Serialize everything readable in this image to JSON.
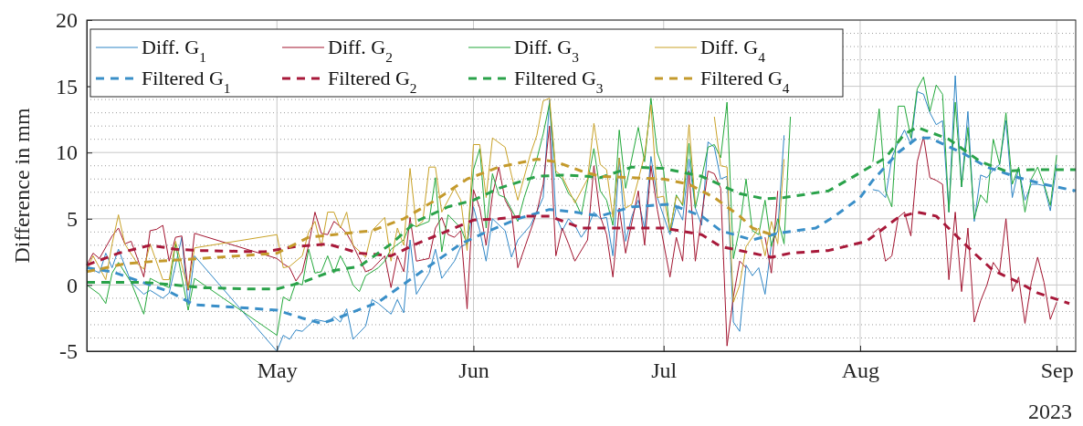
{
  "chart_data": {
    "type": "line",
    "ylabel": "Difference in mm",
    "xlim": [
      "2023-04-01",
      "2023-09-04"
    ],
    "ylim": [
      -5,
      20
    ],
    "xticks": [
      {
        "value": "2023-05-01",
        "label": "May"
      },
      {
        "value": "2023-06-01",
        "label": "Jun"
      },
      {
        "value": "2023-07-01",
        "label": "Jul"
      },
      {
        "value": "2023-08-01",
        "label": "Aug"
      },
      {
        "value": "2023-09-01",
        "label": "Sep"
      }
    ],
    "yticks": [
      -5,
      0,
      5,
      10,
      15,
      20
    ],
    "grid": true,
    "legend": "top",
    "annotations": [
      "2023"
    ],
    "series": [
      {
        "name": "Diff. G$_{1}$",
        "color": "#2f86c6",
        "line_style": "solid",
        "x": [
          "2023-04-01",
          "2023-04-03",
          "2023-04-04",
          "2023-04-05",
          "2023-04-06",
          "2023-04-08",
          "2023-04-10",
          "2023-04-11",
          "2023-04-13",
          "2023-04-14",
          "2023-04-16",
          "2023-04-17",
          "2023-04-18",
          "2023-05-01",
          "2023-05-02",
          "2023-05-03",
          "2023-05-04",
          "2023-05-05",
          "2023-05-07",
          "2023-05-09",
          "2023-05-10",
          "2023-05-11",
          "2023-05-12",
          "2023-05-13",
          "2023-05-15",
          "2023-05-16",
          "2023-05-17",
          "2023-05-19",
          "2023-05-20",
          "2023-05-21",
          "2023-05-22",
          "2023-05-23",
          "2023-05-25",
          "2023-05-26",
          "2023-05-27",
          "2023-05-29",
          "2023-05-30",
          "2023-05-31",
          "2023-06-01",
          "2023-06-02",
          "2023-06-03",
          "2023-06-04",
          "2023-06-06",
          "2023-06-07",
          "2023-06-08",
          "2023-06-10",
          "2023-06-12",
          "2023-06-13",
          "2023-06-14",
          "2023-06-15",
          "2023-06-16",
          "2023-06-17",
          "2023-06-18",
          "2023-06-19",
          "2023-06-20",
          "2023-06-21",
          "2023-06-22",
          "2023-06-23",
          "2023-06-24",
          "2023-06-25",
          "2023-06-26",
          "2023-06-27",
          "2023-06-28",
          "2023-06-29",
          "2023-06-30",
          "2023-07-02",
          "2023-07-03",
          "2023-07-04",
          "2023-07-05",
          "2023-07-06",
          "2023-07-07",
          "2023-07-08",
          "2023-07-09",
          "2023-07-10",
          "2023-07-11",
          "2023-07-12",
          "2023-07-13",
          "2023-07-14",
          "2023-07-15",
          "2023-07-16",
          "2023-07-17",
          "2023-07-18",
          "2023-07-19",
          "2023-07-20",
          "2023-07-21",
          "2023-08-03",
          "2023-08-04",
          "2023-08-05",
          "2023-08-06",
          "2023-08-07",
          "2023-08-08",
          "2023-08-09",
          "2023-08-10",
          "2023-08-11",
          "2023-08-12",
          "2023-08-13",
          "2023-08-14",
          "2023-08-15",
          "2023-08-16",
          "2023-08-17",
          "2023-08-18",
          "2023-08-19",
          "2023-08-20",
          "2023-08-21",
          "2023-08-22",
          "2023-08-23",
          "2023-08-24",
          "2023-08-25",
          "2023-08-26",
          "2023-08-27",
          "2023-08-28",
          "2023-08-29",
          "2023-08-30",
          "2023-08-31",
          "2023-09-01"
        ],
        "values": [
          1.4,
          0.9,
          2.4,
          1.3,
          2.7,
          0.2,
          -0.7,
          -0.4,
          -1.0,
          -0.6,
          3.6,
          -1.5,
          2.2,
          -5.0,
          -3.8,
          -4.1,
          -3.4,
          -3.5,
          -2.6,
          -2.8,
          -2.4,
          -2.8,
          -1.8,
          -4.1,
          -3.1,
          -1.1,
          -1.4,
          -2.2,
          -1.1,
          -2.1,
          3.4,
          -0.7,
          0.9,
          2.7,
          0.5,
          1.8,
          2.9,
          3.1,
          5.9,
          4.1,
          1.8,
          5.0,
          4.1,
          2.1,
          3.4,
          4.5,
          6.6,
          14.0,
          5.2,
          4.1,
          5.0,
          4.5,
          3.6,
          4.3,
          5.5,
          5.0,
          5.1,
          2.2,
          9.6,
          3.3,
          5.2,
          6.4,
          4.3,
          9.7,
          6.6,
          3.8,
          5.9,
          4.9,
          9.5,
          5.8,
          4.5,
          10.8,
          10.4,
          8.0,
          8.2,
          -2.8,
          -3.5,
          1.5,
          0.7,
          1.3,
          -0.7,
          3.1,
          4.1,
          11.3,
          null,
          7.2,
          7.1,
          6.6,
          9.6,
          10.8,
          11.7,
          10.6,
          14.6,
          14.4,
          13.0,
          12.1,
          12.4,
          5.5,
          15.8,
          7.4,
          13.1,
          4.8,
          8.3,
          8.1,
          8.7,
          9.1,
          12.4,
          6.6,
          8.8,
          6.4,
          7.6,
          7.6,
          7.5,
          5.6,
          9.1
        ]
      },
      {
        "name": "Diff. G$_{2}$",
        "color": "#a2142f",
        "line_style": "solid",
        "x": [
          "2023-04-01",
          "2023-04-02",
          "2023-04-03",
          "2023-04-05",
          "2023-04-06",
          "2023-04-07",
          "2023-04-08",
          "2023-04-09",
          "2023-04-10",
          "2023-04-11",
          "2023-04-12",
          "2023-04-13",
          "2023-04-14",
          "2023-04-15",
          "2023-04-16",
          "2023-04-17",
          "2023-04-18",
          "2023-05-01",
          "2023-05-02",
          "2023-05-03",
          "2023-05-04",
          "2023-05-05",
          "2023-05-06",
          "2023-05-07",
          "2023-05-08",
          "2023-05-09",
          "2023-05-10",
          "2023-05-11",
          "2023-05-12",
          "2023-05-13",
          "2023-05-15",
          "2023-05-16",
          "2023-05-18",
          "2023-05-19",
          "2023-05-20",
          "2023-05-21",
          "2023-05-22",
          "2023-05-23",
          "2023-05-25",
          "2023-05-26",
          "2023-05-27",
          "2023-05-28",
          "2023-05-29",
          "2023-05-30",
          "2023-05-31",
          "2023-06-01",
          "2023-06-02",
          "2023-06-03",
          "2023-06-04",
          "2023-06-05",
          "2023-06-06",
          "2023-06-07",
          "2023-06-08",
          "2023-06-09",
          "2023-06-11",
          "2023-06-12",
          "2023-06-13",
          "2023-06-14",
          "2023-06-15",
          "2023-06-16",
          "2023-06-17",
          "2023-06-19",
          "2023-06-20",
          "2023-06-21",
          "2023-06-22",
          "2023-06-23",
          "2023-06-24",
          "2023-06-25",
          "2023-06-27",
          "2023-06-28",
          "2023-06-29",
          "2023-06-30",
          "2023-07-02",
          "2023-07-03",
          "2023-07-04",
          "2023-07-05",
          "2023-07-06",
          "2023-07-08",
          "2023-07-09",
          "2023-07-10",
          "2023-07-11",
          "2023-07-12",
          "2023-07-13",
          "2023-07-14",
          "2023-07-15",
          "2023-07-17",
          "2023-07-18",
          "2023-07-19",
          "2023-07-20",
          "2023-08-03",
          "2023-08-04",
          "2023-08-05",
          "2023-08-06",
          "2023-08-07",
          "2023-08-08",
          "2023-08-09",
          "2023-08-10",
          "2023-08-11",
          "2023-08-12",
          "2023-08-13",
          "2023-08-14",
          "2023-08-15",
          "2023-08-16",
          "2023-08-17",
          "2023-08-18",
          "2023-08-19",
          "2023-08-20",
          "2023-08-21",
          "2023-08-22",
          "2023-08-23",
          "2023-08-24",
          "2023-08-25",
          "2023-08-26",
          "2023-08-27",
          "2023-08-28",
          "2023-08-29",
          "2023-08-30",
          "2023-08-31",
          "2023-09-01"
        ],
        "values": [
          1.5,
          2.4,
          2.0,
          3.7,
          4.3,
          3.1,
          3.3,
          2.0,
          0.6,
          4.1,
          4.2,
          4.5,
          1.8,
          3.6,
          3.7,
          -0.4,
          3.9,
          2.0,
          1.6,
          1.3,
          0.3,
          1.0,
          3.0,
          5.5,
          3.9,
          3.8,
          4.8,
          4.4,
          3.9,
          3.0,
          1.0,
          1.2,
          2.2,
          -0.2,
          2.2,
          1.0,
          5.1,
          1.8,
          2.0,
          4.3,
          5.1,
          3.8,
          3.6,
          4.1,
          -1.8,
          7.2,
          5.8,
          3.0,
          6.8,
          8.9,
          6.4,
          5.5,
          1.3,
          2.7,
          5.5,
          7.6,
          12.0,
          2.2,
          4.3,
          3.1,
          1.8,
          3.4,
          9.0,
          5.2,
          3.8,
          0.6,
          5.8,
          2.4,
          7.1,
          3.0,
          9.0,
          5.7,
          0.6,
          3.6,
          1.8,
          8.6,
          1.8,
          8.6,
          8.4,
          7.3,
          -4.6,
          -0.9,
          1.8,
          1.3,
          null,
          3.6,
          0.9,
          7.1,
          null,
          3.9,
          4.3,
          1.8,
          2.2,
          5.1,
          5.5,
          3.7,
          9.3,
          11.2,
          8.1,
          7.9,
          7.6,
          0.4,
          5.5,
          -0.5,
          4.3,
          -2.8,
          -1.2,
          0,
          1.7,
          1.0,
          5.0,
          -0.5,
          0.6,
          -2.9,
          0.2,
          2.1,
          0.2,
          -2.6,
          -1.3
        ]
      },
      {
        "name": "Diff. G$_{3}$",
        "color": "#22a83a",
        "line_style": "solid",
        "x": [
          "2023-04-01",
          "2023-04-03",
          "2023-04-04",
          "2023-04-05",
          "2023-04-06",
          "2023-04-08",
          "2023-04-10",
          "2023-04-11",
          "2023-04-13",
          "2023-04-14",
          "2023-04-15",
          "2023-04-17",
          "2023-04-18",
          "2023-05-01",
          "2023-05-02",
          "2023-05-03",
          "2023-05-04",
          "2023-05-05",
          "2023-05-06",
          "2023-05-07",
          "2023-05-08",
          "2023-05-09",
          "2023-05-10",
          "2023-05-11",
          "2023-05-12",
          "2023-05-13",
          "2023-05-14",
          "2023-05-15",
          "2023-05-17",
          "2023-05-18",
          "2023-05-19",
          "2023-05-21",
          "2023-05-22",
          "2023-05-23",
          "2023-05-25",
          "2023-05-26",
          "2023-05-27",
          "2023-05-28",
          "2023-05-30",
          "2023-05-31",
          "2023-06-01",
          "2023-06-02",
          "2023-06-03",
          "2023-06-04",
          "2023-06-05",
          "2023-06-06",
          "2023-06-08",
          "2023-06-09",
          "2023-06-11",
          "2023-06-12",
          "2023-06-13",
          "2023-06-14",
          "2023-06-15",
          "2023-06-16",
          "2023-06-17",
          "2023-06-18",
          "2023-06-20",
          "2023-06-21",
          "2023-06-22",
          "2023-06-23",
          "2023-06-24",
          "2023-06-25",
          "2023-06-27",
          "2023-06-28",
          "2023-06-29",
          "2023-06-30",
          "2023-07-01",
          "2023-07-02",
          "2023-07-03",
          "2023-07-04",
          "2023-07-05",
          "2023-07-06",
          "2023-07-08",
          "2023-07-09",
          "2023-07-10",
          "2023-07-11",
          "2023-07-12",
          "2023-07-13",
          "2023-07-14",
          "2023-07-15",
          "2023-07-16",
          "2023-07-17",
          "2023-07-18",
          "2023-07-19",
          "2023-07-20",
          "2023-07-21",
          "2023-07-22",
          "2023-08-03",
          "2023-08-04",
          "2023-08-05",
          "2023-08-06",
          "2023-08-07",
          "2023-08-08",
          "2023-08-09",
          "2023-08-10",
          "2023-08-11",
          "2023-08-12",
          "2023-08-13",
          "2023-08-14",
          "2023-08-15",
          "2023-08-16",
          "2023-08-17",
          "2023-08-18",
          "2023-08-19",
          "2023-08-20",
          "2023-08-21",
          "2023-08-22",
          "2023-08-23",
          "2023-08-24",
          "2023-08-25",
          "2023-08-26",
          "2023-08-27",
          "2023-08-28",
          "2023-08-29",
          "2023-08-30",
          "2023-08-31",
          "2023-09-01"
        ],
        "values": [
          0,
          -0.7,
          -1.4,
          0.9,
          1.7,
          0.2,
          -2.2,
          0.5,
          0,
          -0.2,
          3.1,
          -1.9,
          0.5,
          -3.8,
          -0.9,
          -1.2,
          0.2,
          0,
          2.7,
          0.9,
          1.0,
          2.2,
          0.9,
          2.2,
          1.3,
          0,
          -0.5,
          0.7,
          1.3,
          1.8,
          2.7,
          3.4,
          4.6,
          4.4,
          4.8,
          8.1,
          2.5,
          5.3,
          4.3,
          3.1,
          8.7,
          10.3,
          4.3,
          8.4,
          6.8,
          6.6,
          4.8,
          6.6,
          9.5,
          11.4,
          13.7,
          8.4,
          8.0,
          6.9,
          6.4,
          5.3,
          10.3,
          7.1,
          6.4,
          4.5,
          11.7,
          7.3,
          11.9,
          9.3,
          14.1,
          10.0,
          8.6,
          4.0,
          6.8,
          6.0,
          10.7,
          5.8,
          10.4,
          10.6,
          9.6,
          13.8,
          2.0,
          4.3,
          8.0,
          4.1,
          3.8,
          6.4,
          2.9,
          5.0,
          3.1,
          12.7,
          null,
          9.3,
          13.3,
          7.1,
          5.9,
          13.5,
          13.5,
          11.1,
          14.8,
          15.7,
          13.1,
          15.1,
          14.4,
          5.5,
          13.8,
          7.4,
          11.9,
          5.0,
          6.8,
          6.2,
          11.0,
          9.1,
          13.0,
          7.6,
          8.9,
          5.5,
          8.0,
          8.9,
          7.6,
          6.0,
          9.8
        ]
      },
      {
        "name": "Diff. G$_{4}$",
        "color": "#c9a227",
        "line_style": "solid",
        "x": [
          "2023-04-01",
          "2023-04-02",
          "2023-04-04",
          "2023-04-05",
          "2023-04-06",
          "2023-04-07",
          "2023-04-09",
          "2023-04-10",
          "2023-04-11",
          "2023-04-13",
          "2023-04-14",
          "2023-04-15",
          "2023-04-17",
          "2023-04-18",
          "2023-05-01",
          "2023-05-02",
          "2023-05-03",
          "2023-05-05",
          "2023-05-06",
          "2023-05-07",
          "2023-05-08",
          "2023-05-09",
          "2023-05-10",
          "2023-05-11",
          "2023-05-12",
          "2023-05-13",
          "2023-05-15",
          "2023-05-16",
          "2023-05-18",
          "2023-05-19",
          "2023-05-20",
          "2023-05-21",
          "2023-05-22",
          "2023-05-23",
          "2023-05-24",
          "2023-05-25",
          "2023-05-26",
          "2023-05-27",
          "2023-05-29",
          "2023-05-30",
          "2023-05-31",
          "2023-06-01",
          "2023-06-02",
          "2023-06-03",
          "2023-06-04",
          "2023-06-06",
          "2023-06-07",
          "2023-06-08",
          "2023-06-10",
          "2023-06-11",
          "2023-06-12",
          "2023-06-13",
          "2023-06-14",
          "2023-06-15",
          "2023-06-17",
          "2023-06-19",
          "2023-06-20",
          "2023-06-21",
          "2023-06-22",
          "2023-06-23",
          "2023-06-24",
          "2023-06-25",
          "2023-06-26",
          "2023-06-28",
          "2023-06-29",
          "2023-06-30",
          "2023-07-01",
          "2023-07-02",
          "2023-07-03",
          "2023-07-04",
          "2023-07-05",
          "2023-07-06",
          "2023-07-07",
          "2023-07-09",
          "2023-07-10",
          "2023-07-11",
          "2023-07-12",
          "2023-07-13",
          "2023-07-14",
          "2023-07-15",
          "2023-07-16",
          "2023-07-17",
          "2023-07-18",
          "2023-07-19",
          "2023-07-20"
        ],
        "values": [
          1.1,
          2.2,
          0.4,
          3.1,
          5.3,
          3.1,
          1.6,
          1.2,
          3.1,
          0.4,
          0.4,
          3.3,
          -0.3,
          2.8,
          3.8,
          1.3,
          1.4,
          2.2,
          4.0,
          4.8,
          2.9,
          5.5,
          5.5,
          4.3,
          5.5,
          3.0,
          2.1,
          4.1,
          5.1,
          1.8,
          4.3,
          3.0,
          8.8,
          4.4,
          4.8,
          8.9,
          8.9,
          5.5,
          7.3,
          6.4,
          2.6,
          10.6,
          10.6,
          6.6,
          11.1,
          10.4,
          8.3,
          6.4,
          9.9,
          11.3,
          13.9,
          14.1,
          8.6,
          8.2,
          6.2,
          8.0,
          12.2,
          9.1,
          8.7,
          5.1,
          9.6,
          5.8,
          6.1,
          9.8,
          13.6,
          6.6,
          6.7,
          4.1,
          6.7,
          6.1,
          12.1,
          6.1,
          null,
          12.7,
          9.0,
          8.9,
          -1.3,
          0,
          2.9,
          3.6,
          4.3,
          2.2,
          4.8,
          3.1,
          9.5
        ]
      },
      {
        "name": "Filtered G$_{1}$",
        "color": "#3a8fc8",
        "line_style": "dashed",
        "x": [
          "2023-04-01",
          "2023-04-05",
          "2023-04-08",
          "2023-04-14",
          "2023-04-18",
          "2023-04-25",
          "2023-05-01",
          "2023-05-05",
          "2023-05-08",
          "2023-05-10",
          "2023-05-17",
          "2023-05-22",
          "2023-05-30",
          "2023-06-03",
          "2023-06-08",
          "2023-06-13",
          "2023-06-17",
          "2023-06-21",
          "2023-06-26",
          "2023-07-02",
          "2023-07-07",
          "2023-07-10",
          "2023-07-15",
          "2023-07-19",
          "2023-07-25",
          "2023-07-28",
          "2023-08-01",
          "2023-08-03",
          "2023-08-07",
          "2023-08-10",
          "2023-08-12",
          "2023-08-17",
          "2023-08-21",
          "2023-08-26",
          "2023-08-30",
          "2023-09-04"
        ],
        "values": [
          1.3,
          1.0,
          0.5,
          -0.5,
          -1.5,
          -1.7,
          -1.9,
          -2.5,
          -2.9,
          -2.6,
          -1.3,
          0.4,
          3.1,
          4.0,
          5.0,
          5.7,
          5.5,
          5.2,
          5.9,
          6.1,
          5.2,
          4.1,
          3.4,
          3.9,
          4.3,
          5.2,
          6.6,
          7.9,
          10.0,
          11.1,
          11.1,
          10.0,
          8.9,
          8.1,
          7.6,
          7.1
        ]
      },
      {
        "name": "Filtered G$_{2}$",
        "color": "#a8193a",
        "line_style": "dashed",
        "x": [
          "2023-04-01",
          "2023-04-06",
          "2023-04-11",
          "2023-04-15",
          "2023-04-19",
          "2023-04-29",
          "2023-05-04",
          "2023-05-09",
          "2023-05-14",
          "2023-05-19",
          "2023-05-23",
          "2023-05-28",
          "2023-06-01",
          "2023-06-05",
          "2023-06-09",
          "2023-06-13",
          "2023-06-18",
          "2023-06-21",
          "2023-06-26",
          "2023-07-01",
          "2023-07-07",
          "2023-07-10",
          "2023-07-15",
          "2023-07-18",
          "2023-07-21",
          "2023-07-27",
          "2023-08-02",
          "2023-08-07",
          "2023-08-10",
          "2023-08-13",
          "2023-08-16",
          "2023-08-19",
          "2023-08-22",
          "2023-08-26",
          "2023-08-29",
          "2023-09-03"
        ],
        "values": [
          1.5,
          2.4,
          3.0,
          2.7,
          2.6,
          2.5,
          2.9,
          3.1,
          2.4,
          2.2,
          3.1,
          4.1,
          4.9,
          5.0,
          5.2,
          5.2,
          4.3,
          4.3,
          4.3,
          4.3,
          3.8,
          2.9,
          2.4,
          2.1,
          2.4,
          2.6,
          3.3,
          5.1,
          5.5,
          5.2,
          3.8,
          2.4,
          1.1,
          0.2,
          -0.6,
          -1.4
        ]
      },
      {
        "name": "Filtered G$_{3}$",
        "color": "#2aa24a",
        "line_style": "dashed",
        "x": [
          "2023-04-01",
          "2023-04-10",
          "2023-04-15",
          "2023-04-19",
          "2023-04-27",
          "2023-05-01",
          "2023-05-05",
          "2023-05-10",
          "2023-05-14",
          "2023-05-19",
          "2023-05-23",
          "2023-05-28",
          "2023-06-01",
          "2023-06-05",
          "2023-06-11",
          "2023-06-15",
          "2023-06-19",
          "2023-06-21",
          "2023-06-26",
          "2023-07-01",
          "2023-07-07",
          "2023-07-13",
          "2023-07-17",
          "2023-07-20",
          "2023-07-27",
          "2023-07-31",
          "2023-08-05",
          "2023-08-08",
          "2023-08-10",
          "2023-08-15",
          "2023-08-20",
          "2023-08-24",
          "2023-08-28",
          "2023-09-04"
        ],
        "values": [
          0.2,
          0.2,
          0.0,
          -0.2,
          -0.3,
          -0.3,
          0.2,
          1.1,
          1.4,
          3.1,
          4.8,
          5.9,
          6.4,
          7.3,
          8.2,
          8.3,
          8.2,
          8.1,
          8.9,
          8.8,
          8.2,
          6.9,
          6.5,
          6.6,
          7.1,
          8.2,
          9.6,
          11.4,
          11.9,
          11.0,
          9.3,
          8.6,
          8.7,
          8.7
        ]
      },
      {
        "name": "Filtered G$_{4}$",
        "color": "#c49a2c",
        "line_style": "dashed",
        "x": [
          "2023-04-01",
          "2023-04-07",
          "2023-04-12",
          "2023-04-16",
          "2023-04-22",
          "2023-05-01",
          "2023-05-06",
          "2023-05-10",
          "2023-05-16",
          "2023-05-21",
          "2023-05-26",
          "2023-05-31",
          "2023-06-05",
          "2023-06-11",
          "2023-06-14",
          "2023-06-18",
          "2023-06-21",
          "2023-06-26",
          "2023-07-01",
          "2023-07-05",
          "2023-07-09",
          "2023-07-13",
          "2023-07-15",
          "2023-07-18"
        ],
        "values": [
          1.0,
          1.6,
          1.8,
          1.9,
          2.1,
          2.4,
          3.6,
          3.8,
          4.1,
          5.0,
          6.4,
          8.0,
          8.9,
          9.5,
          9.3,
          8.6,
          8.2,
          8.1,
          8.0,
          7.6,
          6.6,
          5.2,
          4.3,
          3.8
        ]
      }
    ]
  }
}
